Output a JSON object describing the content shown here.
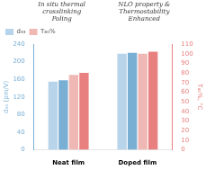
{
  "chart_data": {
    "type": "bar",
    "categories": [
      "Neat film",
      "Doped film"
    ],
    "series": [
      {
        "name": "d₃₃",
        "color": "#b8d4ea",
        "values": [
          155,
          218
        ]
      },
      {
        "color": "#7aafd4",
        "values": [
          158,
          220
        ]
      },
      {
        "name": "T₈₀%",
        "color": "#f0b8b5",
        "values": [
          78,
          100
        ],
        "axis": "y2"
      },
      {
        "color": "#e88080",
        "values": [
          80,
          102
        ],
        "axis": "y2"
      }
    ],
    "ylabel": "d₃₃ (pm/V)",
    "y2label": "T₈₀%, °C",
    "ylim": [
      0,
      240
    ],
    "yticks": [
      0,
      40,
      80,
      120,
      160,
      200,
      240
    ],
    "y2lim": [
      0,
      110
    ],
    "y2ticks": [
      0,
      10,
      20,
      30,
      40,
      50,
      60,
      70,
      80,
      90,
      100,
      110
    ],
    "annotations": [
      "In situ thermal\ncrosslinking\nPoling",
      "NLO property &",
      "Thermostability",
      "Enhanced"
    ],
    "grid": false,
    "legend": "upper left"
  }
}
